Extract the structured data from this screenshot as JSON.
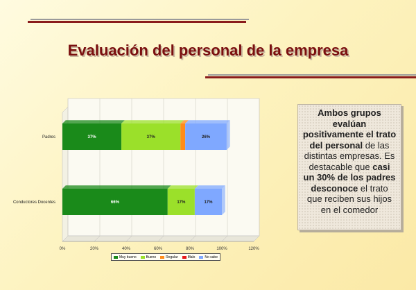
{
  "slide": {
    "title": "Evaluación del personal de la empresa",
    "colors": {
      "title": "#7a0f0f",
      "rule_dark": "#8a1c1c",
      "rule_gray": "#9a9a9a"
    }
  },
  "textbox": {
    "parts": [
      {
        "text": "Ambos grupos evalúan positivamente el trato del personal",
        "bold": true
      },
      {
        "text": " de las distintas empresas. Es destacable que ",
        "bold": false
      },
      {
        "text": "casi un 30% de los padres desconoce",
        "bold": true
      },
      {
        "text": " el trato que reciben sus hijos en el comedor",
        "bold": false
      }
    ]
  },
  "chart_data": {
    "type": "bar",
    "orientation": "horizontal",
    "stacked": "percent",
    "categories": [
      "Padres",
      "Conductores Docentes"
    ],
    "series": [
      {
        "name": "Muy bueno",
        "color": "#1a8a1a",
        "values": [
          37,
          66
        ],
        "labels": [
          "37%",
          "66%"
        ]
      },
      {
        "name": "Bueno",
        "color": "#9be02a",
        "values": [
          37,
          17
        ],
        "labels": [
          "37%",
          "17%"
        ]
      },
      {
        "name": "Regular",
        "color": "#ff8c1a",
        "values": [
          3,
          0
        ],
        "labels": [
          "",
          ""
        ]
      },
      {
        "name": "Malo",
        "color": "#e81818",
        "values": [
          0,
          0
        ],
        "labels": [
          "",
          ""
        ]
      },
      {
        "name": "No sabe",
        "color": "#7fa8ff",
        "values": [
          26,
          17
        ],
        "labels": [
          "26%",
          "17%"
        ]
      }
    ],
    "xticks": [
      "0%",
      "20%",
      "40%",
      "60%",
      "80%",
      "100%",
      "120%"
    ],
    "xlim": [
      0,
      120
    ],
    "grid": true,
    "legend_position": "bottom"
  }
}
